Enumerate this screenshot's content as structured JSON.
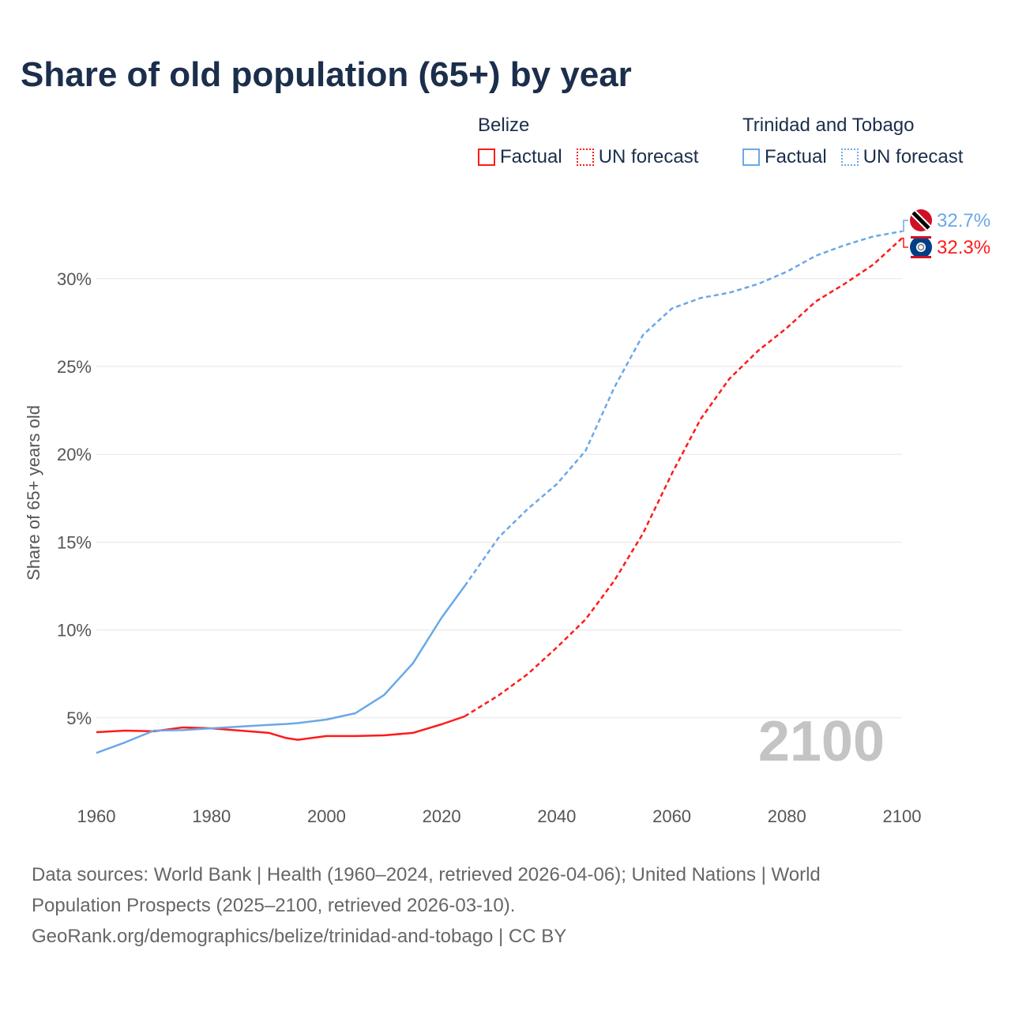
{
  "chart_data": {
    "type": "line",
    "title": "Share of old population (65+) by year",
    "ylabel": "Share of 65+ years old",
    "xlabel": "",
    "xlim": [
      1960,
      2100
    ],
    "ylim": [
      0,
      34
    ],
    "x_ticks": [
      "1960",
      "1980",
      "2000",
      "2020",
      "2040",
      "2060",
      "2080",
      "2100"
    ],
    "x_tick_values": [
      1960,
      1980,
      2000,
      2020,
      2040,
      2060,
      2080,
      2100
    ],
    "y_ticks": [
      "5%",
      "10%",
      "15%",
      "20%",
      "25%",
      "30%"
    ],
    "y_tick_values": [
      5,
      10,
      15,
      20,
      25,
      30
    ],
    "grid": true,
    "year_watermark": "2100",
    "legend": {
      "placement": "top-right",
      "groups": [
        {
          "country": "Belize",
          "factual": "Factual",
          "forecast": "UN forecast",
          "color": "#ff1a1a"
        },
        {
          "country": "Trinidad and Tobago",
          "factual": "Factual",
          "forecast": "UN forecast",
          "color": "#6aa8e8"
        }
      ]
    },
    "series": [
      {
        "name": "Belize",
        "color": "#ff1a1a",
        "end_label": "32.3%",
        "factual_until": 2024,
        "x": [
          1960,
          1965,
          1970,
          1975,
          1980,
          1985,
          1990,
          1993,
          1995,
          2000,
          2005,
          2010,
          2015,
          2020,
          2024,
          2030,
          2035,
          2040,
          2045,
          2050,
          2055,
          2060,
          2065,
          2070,
          2075,
          2080,
          2085,
          2090,
          2095,
          2100
        ],
        "values": [
          4.18,
          4.27,
          4.23,
          4.45,
          4.4,
          4.27,
          4.14,
          3.85,
          3.75,
          3.96,
          3.96,
          4.0,
          4.14,
          4.63,
          5.08,
          6.3,
          7.5,
          9.0,
          10.6,
          12.8,
          15.5,
          18.9,
          22.0,
          24.3,
          25.9,
          27.2,
          28.7,
          29.7,
          30.8,
          32.3
        ]
      },
      {
        "name": "Trinidad and Tobago",
        "color": "#6aa8e8",
        "end_label": "32.7%",
        "factual_until": 2024,
        "x": [
          1960,
          1965,
          1970,
          1975,
          1980,
          1985,
          1990,
          1993,
          1995,
          2000,
          2005,
          2010,
          2015,
          2020,
          2024,
          2030,
          2035,
          2040,
          2045,
          2050,
          2055,
          2060,
          2065,
          2070,
          2075,
          2080,
          2085,
          2090,
          2095,
          2100
        ],
        "values": [
          3.0,
          3.6,
          4.27,
          4.3,
          4.4,
          4.5,
          4.6,
          4.65,
          4.7,
          4.9,
          5.26,
          6.3,
          8.1,
          10.7,
          12.5,
          15.3,
          16.9,
          18.3,
          20.2,
          23.8,
          26.8,
          28.3,
          28.9,
          29.2,
          29.7,
          30.4,
          31.3,
          31.9,
          32.4,
          32.7
        ]
      }
    ]
  },
  "footer": {
    "line1": "Data sources: World Bank | Health (1960–2024, retrieved 2026-04-06); United Nations | World",
    "line2": "Population Prospects (2025–2100, retrieved 2026-03-10).",
    "line3": "GeoRank.org/demographics/belize/trinidad-and-tobago | CC BY"
  }
}
